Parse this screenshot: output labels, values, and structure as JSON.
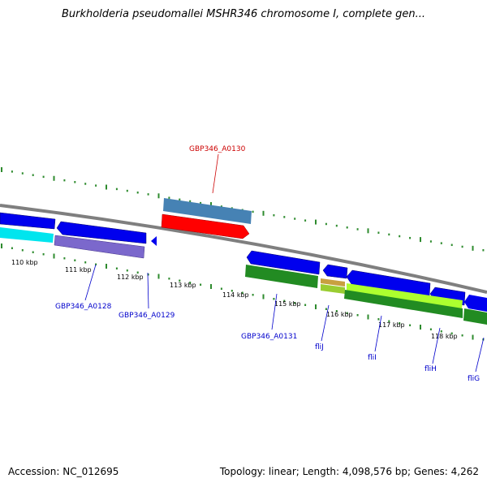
{
  "title": "Burkholderia pseudomallei MSHR346 chromosome I, complete gen...",
  "footer": {
    "accession": "Accession: NC_012695",
    "summary": "Topology: linear; Length: 4,098,576 bp; Genes: 4,262"
  },
  "ruler": {
    "unit": "kbp",
    "ticks": [
      "110 kbp",
      "111 kbp",
      "112 kbp",
      "113 kbp",
      "114 kbp",
      "115 kbp",
      "116 kbp",
      "117 kbp",
      "118 kbp"
    ]
  },
  "gene_labels": [
    {
      "name": "GBP346_A0130",
      "color": "#cc0000"
    },
    {
      "name": "GBP346_A0128",
      "color": "#0000cc"
    },
    {
      "name": "GBP346_A0129",
      "color": "#0000cc"
    },
    {
      "name": "GBP346_A0131",
      "color": "#0000cc"
    },
    {
      "name": "fliJ",
      "color": "#0000cc"
    },
    {
      "name": "fliI",
      "color": "#0000cc"
    },
    {
      "name": "fliH",
      "color": "#0000cc"
    },
    {
      "name": "fliG",
      "color": "#0000cc"
    }
  ],
  "colors": {
    "backbone": "#808080",
    "cds_blue": "#0000ee",
    "cyan": "#00e5ee",
    "purple": "#7b68cc",
    "steelblue": "#4682b4",
    "red": "#ff0000",
    "green": "#228b22",
    "lightgreen": "#9acd32",
    "tick_green": "#2e8b2e"
  }
}
